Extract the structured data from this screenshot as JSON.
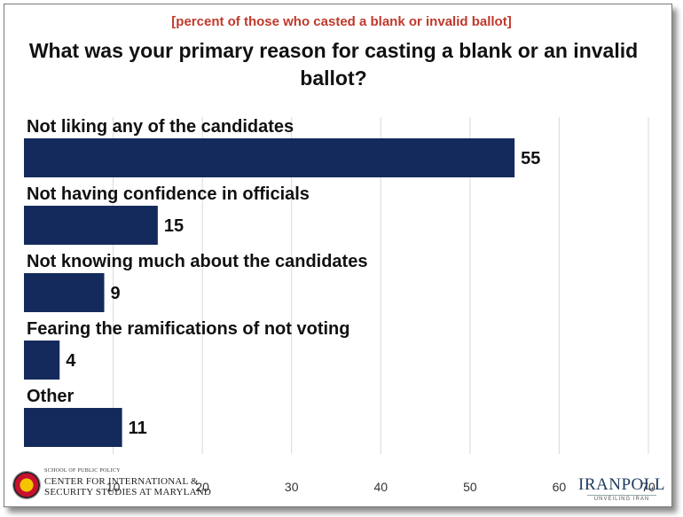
{
  "chart_data": {
    "type": "bar",
    "orientation": "horizontal",
    "subtitle": "[percent of those who casted a blank or invalid ballot]",
    "title": "What was your primary reason for casting a blank or an invalid ballot?",
    "categories": [
      "Not liking any of the candidates",
      "Not having confidence in officials",
      "Not knowing much about the candidates",
      "Fearing the ramifications of not voting",
      "Other"
    ],
    "values": [
      55,
      15,
      9,
      4,
      11
    ],
    "xlim": [
      0,
      70
    ],
    "ticks": [
      10,
      20,
      30,
      40,
      50,
      60,
      70
    ],
    "grid": true,
    "legend": "none",
    "bar_color": "#142a5c"
  },
  "footer": {
    "left_small": "SCHOOL OF PUBLIC POLICY",
    "left_line1": "CENTER FOR INTERNATIONAL &",
    "left_line2": "SECURITY STUDIES AT MARYLAND",
    "right_brand": "IRANPOLL",
    "right_tag": "UNVEILING IRAN"
  }
}
